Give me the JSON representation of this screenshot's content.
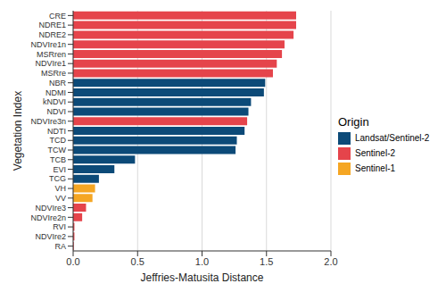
{
  "chart_data": {
    "type": "bar",
    "orientation": "horizontal",
    "x_label": "Jeffries-Matusita Distance",
    "y_label": "Vegetation Index",
    "legend": "right",
    "legend_title": "Origin",
    "grid": true,
    "categories": [
      "CRE",
      "NDRE1",
      "NDRE2",
      "NDVIre1n",
      "MSRren",
      "NDVIre1",
      "MSRre",
      "NBR",
      "NDMI",
      "kNDVI",
      "NDVI",
      "NDVIre3n",
      "NDTI",
      "TCD",
      "TCW",
      "TCB",
      "EVI",
      "TCG",
      "VH",
      "VV",
      "NDVIre3",
      "NDVIre2n",
      "RVI",
      "NDVIre2",
      "RA"
    ],
    "series": [
      {
        "name": "Landsat/Sentinel-2",
        "color": "#0c4a78",
        "values": [
          null,
          null,
          null,
          null,
          null,
          null,
          null,
          1.49,
          1.48,
          1.38,
          1.36,
          null,
          1.33,
          1.27,
          1.26,
          0.48,
          0.32,
          0.2,
          null,
          null,
          null,
          null,
          null,
          null,
          null
        ]
      },
      {
        "name": "Sentinel-2",
        "color": "#e5444b",
        "values": [
          1.73,
          1.73,
          1.71,
          1.64,
          1.62,
          1.58,
          1.55,
          null,
          null,
          null,
          null,
          1.35,
          null,
          null,
          null,
          null,
          null,
          null,
          null,
          null,
          0.1,
          0.07,
          0.01,
          0.01,
          0.005
        ]
      },
      {
        "name": "Sentinel-1",
        "color": "#f5a623",
        "values": [
          null,
          null,
          null,
          null,
          null,
          null,
          null,
          null,
          null,
          null,
          null,
          null,
          null,
          null,
          null,
          null,
          null,
          null,
          0.17,
          0.15,
          null,
          null,
          null,
          null,
          null
        ]
      }
    ],
    "xlim": [
      0,
      2
    ],
    "xticks": [
      {
        "value": 0,
        "label": "0.0"
      },
      0.5,
      {
        "value": 1,
        "label": "1.0"
      },
      1.5,
      {
        "value": 2,
        "label": "2.0"
      }
    ]
  }
}
